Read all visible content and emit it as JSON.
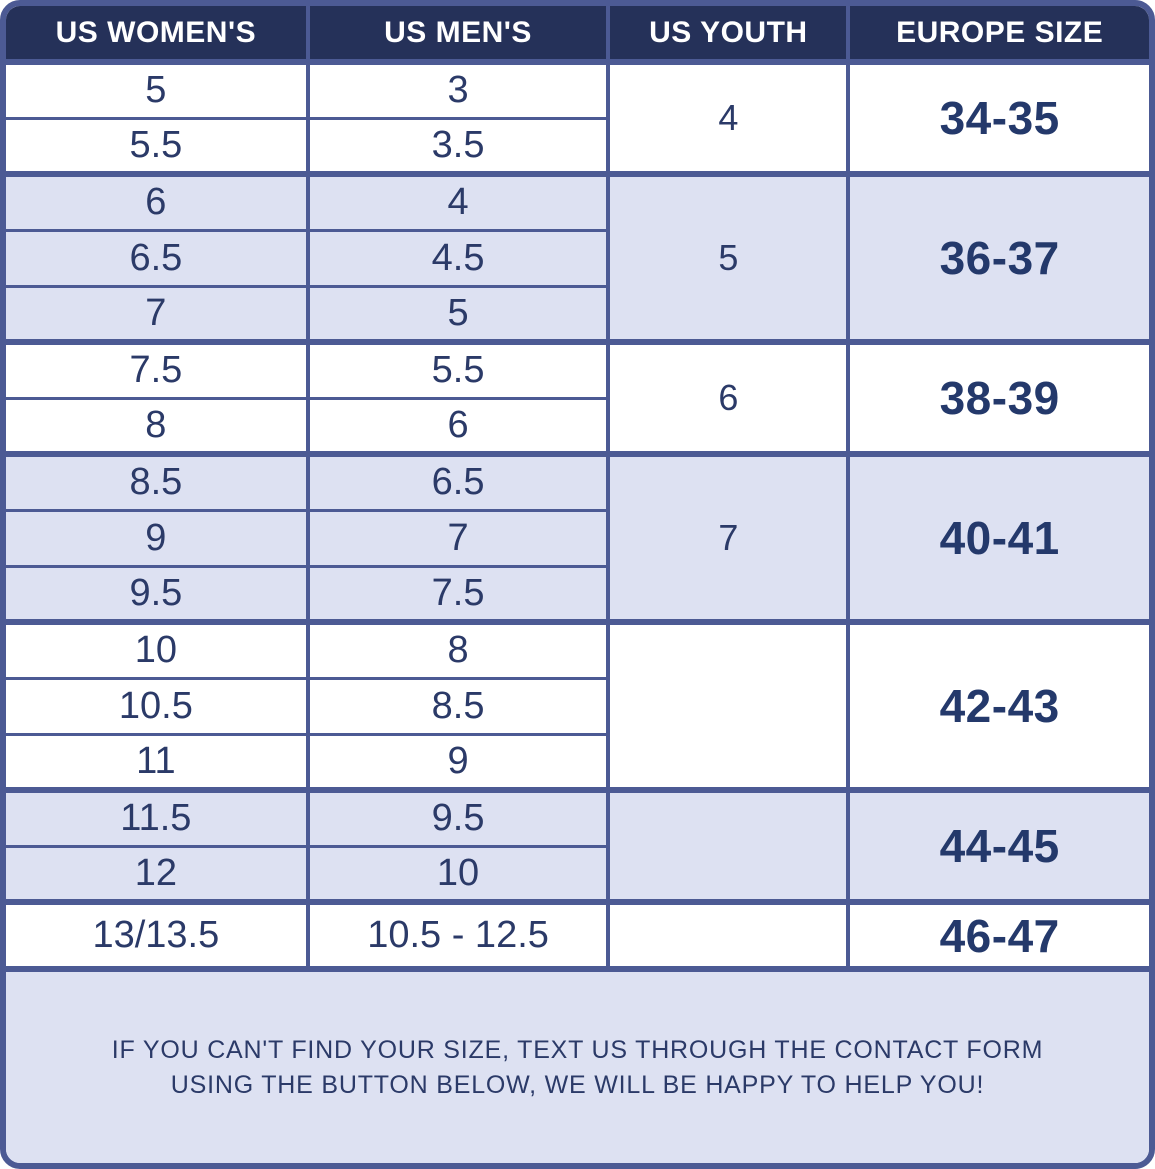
{
  "colors": {
    "header_bg": "#253159",
    "border": "#4c5a94",
    "row_alt": "#dde1f2",
    "text": "#2b3a68",
    "europe_text": "#24396b"
  },
  "table": {
    "headers": [
      "US WOMEN'S",
      "US MEN'S",
      "US YOUTH",
      "EUROPE SIZE"
    ],
    "groups": [
      {
        "shade": "white",
        "women": [
          "5",
          "5.5"
        ],
        "men": [
          "3",
          "3.5"
        ],
        "youth": "4",
        "europe": "34-35"
      },
      {
        "shade": "lavender",
        "women": [
          "6",
          "6.5",
          "7"
        ],
        "men": [
          "4",
          "4.5",
          "5"
        ],
        "youth": "5",
        "europe": "36-37"
      },
      {
        "shade": "white",
        "women": [
          "7.5",
          "8"
        ],
        "men": [
          "5.5",
          "6"
        ],
        "youth": "6",
        "europe": "38-39"
      },
      {
        "shade": "lavender",
        "women": [
          "8.5",
          "9",
          "9.5"
        ],
        "men": [
          "6.5",
          "7",
          "7.5"
        ],
        "youth": "7",
        "europe": "40-41"
      },
      {
        "shade": "white",
        "women": [
          "10",
          "10.5",
          "11"
        ],
        "men": [
          "8",
          "8.5",
          "9"
        ],
        "youth": "",
        "europe": "42-43"
      },
      {
        "shade": "lavender",
        "women": [
          "11.5",
          "12"
        ],
        "men": [
          "9.5",
          "10"
        ],
        "youth": "",
        "europe": "44-45"
      },
      {
        "shade": "white",
        "women": [
          "13/13.5"
        ],
        "men": [
          "10.5 - 12.5"
        ],
        "youth": "",
        "europe": "46-47"
      }
    ],
    "footer": {
      "lines": [
        "IF YOU CAN'T FIND YOUR SIZE, TEXT US THROUGH THE CONTACT FORM",
        "USING THE BUTTON BELOW, WE WILL BE HAPPY TO HELP YOU!"
      ]
    }
  }
}
